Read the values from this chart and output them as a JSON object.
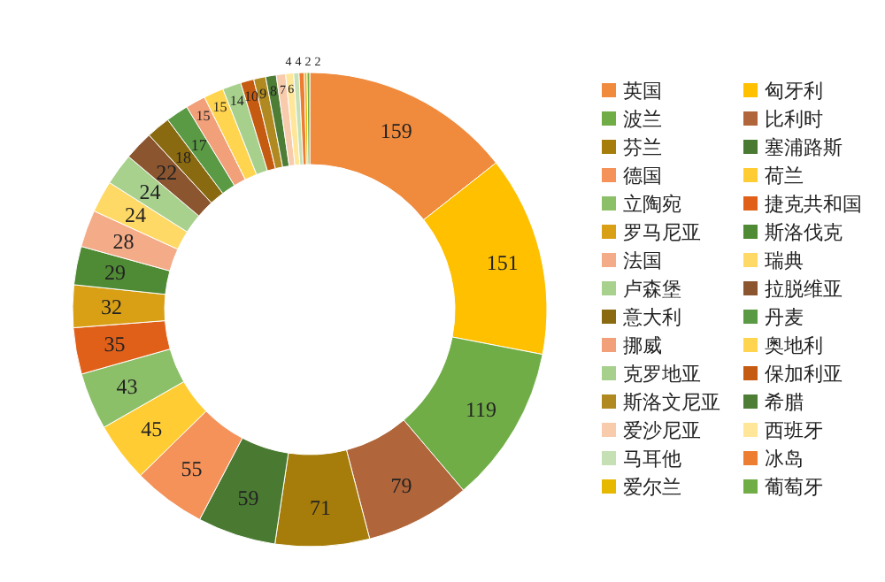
{
  "chart_data": {
    "type": "donut",
    "categories": [
      "英国",
      "匈牙利",
      "波兰",
      "比利时",
      "芬兰",
      "塞浦路斯",
      "德国",
      "荷兰",
      "立陶宛",
      "捷克共和国",
      "罗马尼亚",
      "斯洛伐克",
      "法国",
      "瑞典",
      "卢森堡",
      "拉脱维亚",
      "意大利",
      "丹麦",
      "挪威",
      "奥地利",
      "克罗地亚",
      "保加利亚",
      "斯洛文尼亚",
      "希腊",
      "爱沙尼亚",
      "西班牙",
      "马耳他",
      "冰岛",
      "爱尔兰",
      "葡萄牙"
    ],
    "values": [
      159,
      151,
      119,
      79,
      71,
      59,
      55,
      45,
      43,
      35,
      32,
      29,
      28,
      24,
      24,
      22,
      18,
      17,
      15,
      15,
      14,
      10,
      9,
      8,
      7,
      6,
      4,
      4,
      2,
      2
    ],
    "colors": [
      "#f08a3c",
      "#ffc000",
      "#70ad47",
      "#b0653a",
      "#a67d0a",
      "#4a7a32",
      "#f4925a",
      "#ffcd33",
      "#8cc068",
      "#e0601a",
      "#d9a015",
      "#4f8a35",
      "#f4ab88",
      "#ffd966",
      "#a9d18e",
      "#8b5530",
      "#8a6a10",
      "#5b9a45",
      "#f2a07a",
      "#ffd54f",
      "#a8d08d",
      "#c55a11",
      "#b08a20",
      "#4e7d36",
      "#f8cbad",
      "#ffe699",
      "#c5e0b4",
      "#ed7d31",
      "#e6b800",
      "#70ad47"
    ],
    "data_labels": true,
    "legend": "right"
  }
}
